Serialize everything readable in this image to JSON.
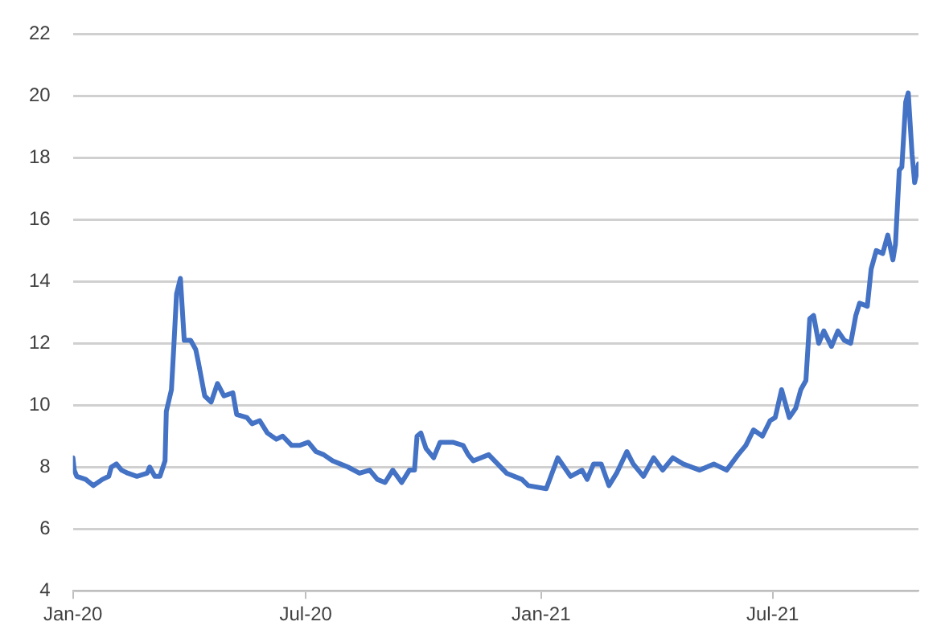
{
  "chart_data": {
    "type": "line",
    "color": "#4472c4",
    "grid": "y",
    "marker": "none",
    "line_style": "solid",
    "xlim": [
      "2020-01-01",
      "2021-10-23"
    ],
    "ylim": [
      4,
      22
    ],
    "yticks": [
      4,
      6,
      8,
      10,
      12,
      14,
      16,
      18,
      20,
      22
    ],
    "xticks": [
      {
        "value": "2020-01-01",
        "label": "Jan-20"
      },
      {
        "value": "2020-07-01",
        "label": "Jul-20"
      },
      {
        "value": "2021-01-01",
        "label": "Jan-21"
      },
      {
        "value": "2021-07-01",
        "label": "Jul-21"
      }
    ],
    "x": [
      "2020-01-01",
      "2020-01-02",
      "2020-01-04",
      "2020-01-11",
      "2020-01-17",
      "2020-01-24",
      "2020-01-29",
      "2020-01-31",
      "2020-02-04",
      "2020-02-08",
      "2020-02-13",
      "2020-02-20",
      "2020-02-28",
      "2020-03-01",
      "2020-03-05",
      "2020-03-09",
      "2020-03-13",
      "2020-03-14",
      "2020-03-18",
      "2020-03-20",
      "2020-03-22",
      "2020-03-25",
      "2020-03-28",
      "2020-04-02",
      "2020-04-06",
      "2020-04-08",
      "2020-04-13",
      "2020-04-18",
      "2020-04-23",
      "2020-04-28",
      "2020-05-05",
      "2020-05-08",
      "2020-05-16",
      "2020-05-20",
      "2020-05-26",
      "2020-06-01",
      "2020-06-08",
      "2020-06-13",
      "2020-06-20",
      "2020-06-26",
      "2020-07-03",
      "2020-07-09",
      "2020-07-15",
      "2020-07-22",
      "2020-07-28",
      "2020-08-03",
      "2020-08-12",
      "2020-08-20",
      "2020-08-26",
      "2020-09-01",
      "2020-09-07",
      "2020-09-14",
      "2020-09-20",
      "2020-09-24",
      "2020-09-26",
      "2020-09-29",
      "2020-10-03",
      "2020-10-09",
      "2020-10-14",
      "2020-10-24",
      "2020-11-01",
      "2020-11-05",
      "2020-11-09",
      "2020-11-21",
      "2020-12-05",
      "2020-12-17",
      "2020-12-22",
      "2021-01-05",
      "2021-01-14",
      "2021-01-24",
      "2021-02-02",
      "2021-02-06",
      "2021-02-11",
      "2021-02-17",
      "2021-02-23",
      "2021-03-01",
      "2021-03-09",
      "2021-03-14",
      "2021-03-22",
      "2021-03-30",
      "2021-04-06",
      "2021-04-14",
      "2021-04-22",
      "2021-05-05",
      "2021-05-16",
      "2021-05-26",
      "2021-06-04",
      "2021-06-10",
      "2021-06-16",
      "2021-06-23",
      "2021-06-29",
      "2021-07-03",
      "2021-07-08",
      "2021-07-14",
      "2021-07-19",
      "2021-07-23",
      "2021-07-27",
      "2021-07-30",
      "2021-08-02",
      "2021-08-06",
      "2021-08-10",
      "2021-08-16",
      "2021-08-21",
      "2021-08-26",
      "2021-08-31",
      "2021-09-04",
      "2021-09-07",
      "2021-09-13",
      "2021-09-16",
      "2021-09-20",
      "2021-09-25",
      "2021-09-29",
      "2021-10-03",
      "2021-10-05",
      "2021-10-08",
      "2021-10-10",
      "2021-10-13",
      "2021-10-15",
      "2021-10-18",
      "2021-10-20",
      "2021-10-23"
    ],
    "values": [
      8.3,
      7.9,
      7.7,
      7.6,
      7.4,
      7.6,
      7.7,
      8.0,
      8.1,
      7.9,
      7.8,
      7.7,
      7.8,
      8.0,
      7.7,
      7.7,
      8.2,
      9.8,
      10.5,
      12.0,
      13.6,
      14.1,
      12.1,
      12.1,
      11.8,
      11.4,
      10.3,
      10.1,
      10.7,
      10.3,
      10.4,
      9.7,
      9.6,
      9.4,
      9.5,
      9.1,
      8.9,
      9.0,
      8.7,
      8.7,
      8.8,
      8.5,
      8.4,
      8.2,
      8.1,
      8.0,
      7.8,
      7.9,
      7.6,
      7.5,
      7.9,
      7.5,
      7.9,
      7.9,
      9.0,
      9.1,
      8.6,
      8.3,
      8.8,
      8.8,
      8.7,
      8.4,
      8.2,
      8.4,
      7.8,
      7.6,
      7.4,
      7.3,
      8.3,
      7.7,
      7.9,
      7.6,
      8.1,
      8.1,
      7.4,
      7.8,
      8.5,
      8.1,
      7.7,
      8.3,
      7.9,
      8.3,
      8.1,
      7.9,
      8.1,
      7.9,
      8.4,
      8.7,
      9.2,
      9.0,
      9.5,
      9.6,
      10.5,
      9.6,
      9.9,
      10.5,
      10.8,
      12.8,
      12.9,
      12.0,
      12.4,
      11.9,
      12.4,
      12.1,
      12.0,
      12.9,
      13.3,
      13.2,
      14.4,
      15.0,
      14.9,
      15.5,
      14.7,
      15.2,
      17.6,
      17.7,
      19.8,
      20.1,
      18.1,
      17.2,
      17.8
    ]
  }
}
